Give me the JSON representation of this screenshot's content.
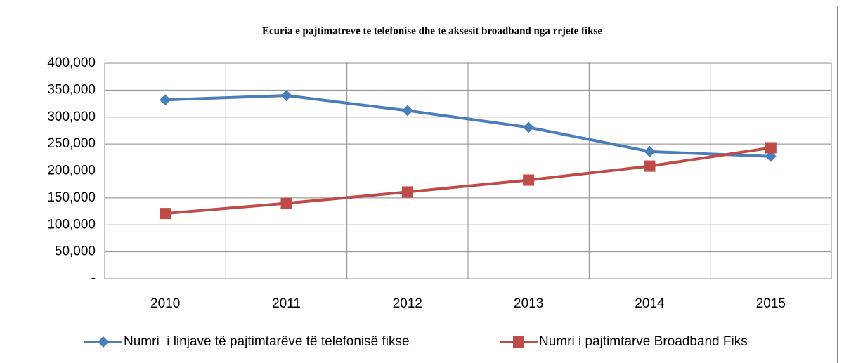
{
  "chart_data": {
    "type": "line",
    "title": "Ecuria e pajtimatreve te telefonise dhe te aksesit broadband nga rrjete fikse",
    "categories": [
      "2010",
      "2011",
      "2012",
      "2013",
      "2014",
      "2015"
    ],
    "series": [
      {
        "name": "Numri  i linjave të pajtimtarëve të telefonisë fikse",
        "color": "#4a7ebb",
        "marker": "diamond",
        "values": [
          332000,
          340000,
          312000,
          281000,
          236000,
          227000
        ]
      },
      {
        "name": "Numri i pajtimtarve Broadband Fiks",
        "color": "#be4b48",
        "marker": "square",
        "values": [
          121000,
          140000,
          161000,
          183000,
          209000,
          243000
        ]
      }
    ],
    "ylim": [
      0,
      400000
    ],
    "yticks": [
      {
        "value": 0,
        "label": "-"
      },
      {
        "value": 50000,
        "label": "50,000"
      },
      {
        "value": 100000,
        "label": "100,000"
      },
      {
        "value": 150000,
        "label": "150,000"
      },
      {
        "value": 200000,
        "label": "200,000"
      },
      {
        "value": 250000,
        "label": "250,000"
      },
      {
        "value": 300000,
        "label": "300,000"
      },
      {
        "value": 350000,
        "label": "350,000"
      },
      {
        "value": 400000,
        "label": "400,000"
      }
    ],
    "grid": true,
    "legend": "bottom"
  }
}
